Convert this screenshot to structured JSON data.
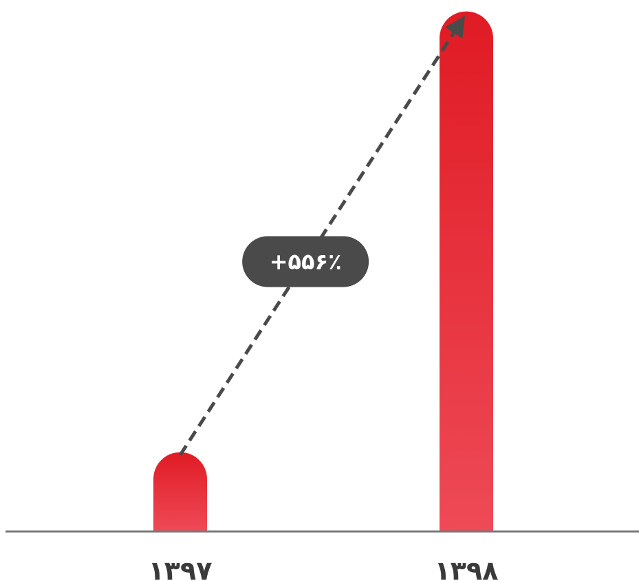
{
  "chart_data": {
    "type": "bar",
    "categories": [
      "۱۳۹۷",
      "۱۳۹۸"
    ],
    "values": [
      1,
      6.56
    ],
    "ylim": [
      0,
      6.6
    ],
    "grid": false,
    "legend": "none",
    "annotation": {
      "type": "arrow",
      "from_category": 0,
      "to_category": 1,
      "label": "+۵۵۶٪"
    },
    "colors": {
      "bar_top": "#e01b24",
      "bar_bottom": "#ee4a57",
      "axis": "#7a7a7a",
      "arrow": "#4a4a4a",
      "badge": "#4a4a4a",
      "badge_text": "#ffffff",
      "tick_text": "#3a3a3a"
    }
  }
}
